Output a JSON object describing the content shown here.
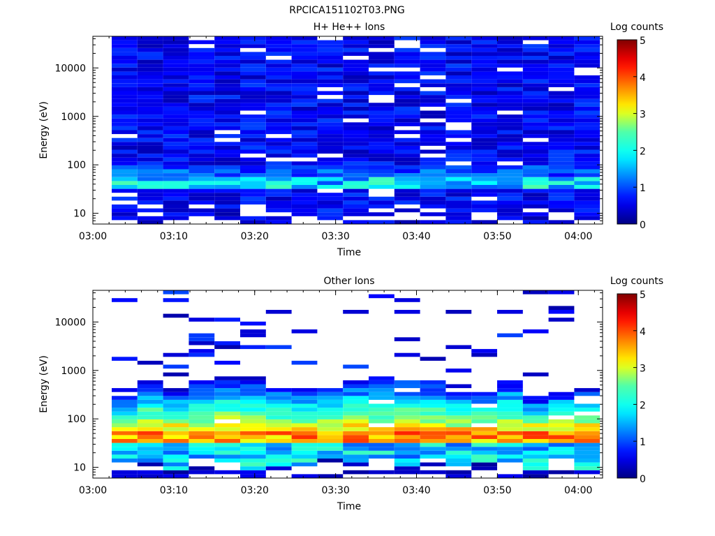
{
  "figure_title": "RPCICA151102T03.PNG",
  "chart_data": [
    {
      "type": "heatmap",
      "title": "H+ He++ Ions",
      "xlabel": "Time",
      "ylabel": "Energy (eV)",
      "colorbar_label": "Log counts",
      "colorbar_range": [
        0,
        5
      ],
      "colorbar_ticks": [
        "0",
        "1",
        "2",
        "3",
        "4",
        "5"
      ],
      "x_ticks": [
        "03:00",
        "03:10",
        "03:20",
        "03:30",
        "03:40",
        "03:50",
        "04:00"
      ],
      "x_range": [
        "03:00",
        "04:03"
      ],
      "y_scale": "log",
      "y_ticks": [
        "10",
        "100",
        "1000",
        "10000"
      ],
      "y_range": [
        6,
        45000
      ],
      "colormap": "jet (dark blue → blue → cyan → green → yellow → orange → red → dark red)",
      "description_of_values": "background ~0.3–0.8 log counts across 6 eV–45 keV; band of ~1–2.5 log counts near 35–60 eV in every time bin; sparse white (empty) energy rows"
    },
    {
      "type": "heatmap",
      "title": "Other Ions",
      "xlabel": "Time",
      "ylabel": "Energy (eV)",
      "colorbar_label": "Log counts",
      "colorbar_range": [
        0,
        5
      ],
      "colorbar_ticks": [
        "0",
        "1",
        "2",
        "3",
        "4",
        "5"
      ],
      "x_ticks": [
        "03:00",
        "03:10",
        "03:20",
        "03:30",
        "03:40",
        "03:50",
        "04:00"
      ],
      "x_range": [
        "03:00",
        "04:03"
      ],
      "y_scale": "log",
      "y_ticks": [
        "10",
        "100",
        "1000",
        "10000"
      ],
      "y_range": [
        6,
        45000
      ],
      "colormap": "jet (dark blue → blue → cyan → green → yellow → orange → red → dark red)",
      "description_of_values": "peak ~3.5–4.2 log counts near 35–55 eV in every time bin, decreasing to ~1 at 300–1000 eV; sparse isolated low-count rows up to ~40 keV"
    }
  ]
}
